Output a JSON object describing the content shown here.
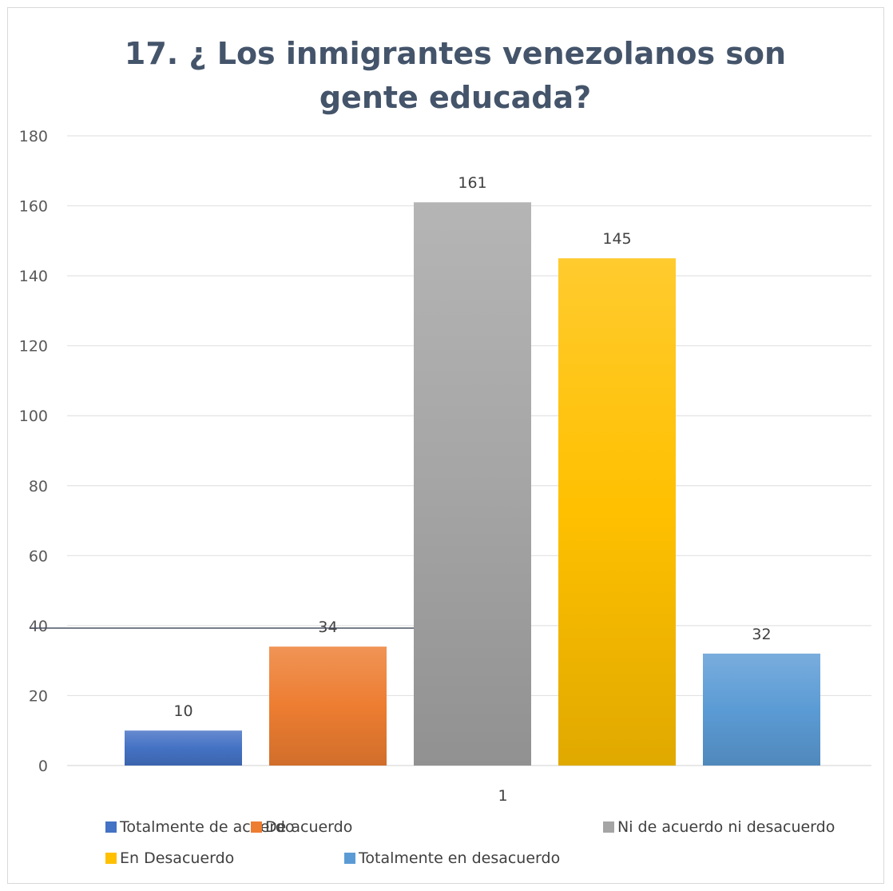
{
  "chart_data": {
    "type": "bar",
    "title": "17. ¿ Los inmigrantes venezolanos son gente educada?",
    "xlabel": "",
    "ylabel": "",
    "categories": [
      "1"
    ],
    "series": [
      {
        "name": "Totalmente de acuerdo",
        "values": [
          10
        ],
        "color": "#4472c4"
      },
      {
        "name": "De acuerdo",
        "values": [
          34
        ],
        "color": "#ed7d31"
      },
      {
        "name": "Ni de acuerdo ni desacuerdo",
        "values": [
          161
        ],
        "color": "#a5a5a5"
      },
      {
        "name": "En Desacuerdo",
        "values": [
          145
        ],
        "color": "#ffc000"
      },
      {
        "name": "Totalmente en desacuerdo",
        "values": [
          32
        ],
        "color": "#5b9bd5"
      }
    ],
    "ylim": [
      0,
      180
    ],
    "yticks": [
      0,
      20,
      40,
      60,
      80,
      100,
      120,
      140,
      160,
      180
    ],
    "grid": true,
    "legend": "bottom"
  }
}
